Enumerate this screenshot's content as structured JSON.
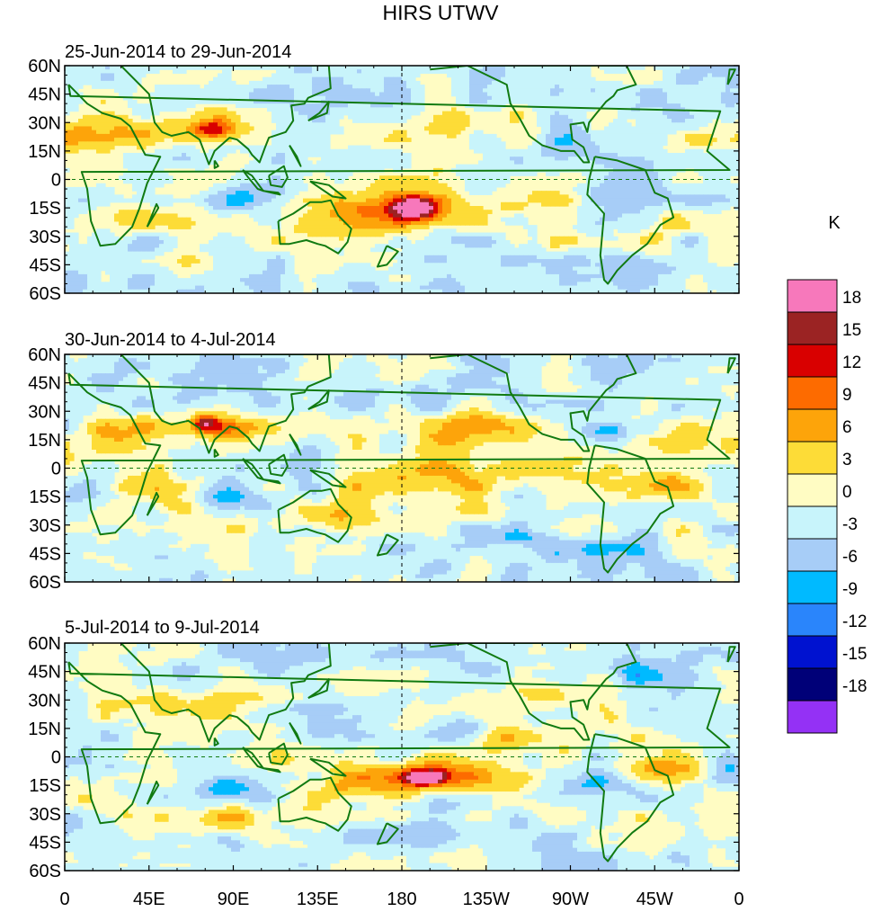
{
  "chart_data": {
    "type": "heatmap",
    "title": "HIRS UTWV",
    "colorbar": {
      "unit_label": "K",
      "levels": [
        "18",
        "15",
        "12",
        "9",
        "6",
        "3",
        "0",
        "-3",
        "-6",
        "-9",
        "-12",
        "-15",
        "-18"
      ],
      "colors": [
        "#f778bb",
        "#9b2323",
        "#d90000",
        "#fd6b00",
        "#fda40a",
        "#fddc37",
        "#fffcc3",
        "#c8f4fb",
        "#a7cdf7",
        "#00baff",
        "#2a85fb",
        "#0012d0",
        "#000078",
        "#9431f5"
      ]
    },
    "x_ticks": [
      "0",
      "45E",
      "90E",
      "135E",
      "180",
      "135W",
      "90W",
      "45W",
      "0"
    ],
    "y_ticks": [
      "60N",
      "45N",
      "30N",
      "15N",
      "0",
      "15S",
      "30S",
      "45S",
      "60S"
    ],
    "lon_range": [
      0,
      360
    ],
    "lat_range": [
      -60,
      60
    ],
    "panels": [
      {
        "subtitle": "25-Jun-2014 to 29-Jun-2014",
        "blobs": [
          {
            "lon": 185,
            "lat": -16,
            "rx": 28,
            "ry": 10,
            "v": 12
          },
          {
            "lon": 187,
            "lat": -15,
            "rx": 10,
            "ry": 5,
            "v": 16
          },
          {
            "lon": 150,
            "lat": -22,
            "rx": 45,
            "ry": 8,
            "v": 6
          },
          {
            "lon": 65,
            "lat": 28,
            "rx": 40,
            "ry": 10,
            "v": 7
          },
          {
            "lon": 80,
            "lat": 26,
            "rx": 10,
            "ry": 5,
            "v": 10
          },
          {
            "lon": 20,
            "lat": 22,
            "rx": 25,
            "ry": 8,
            "v": 5
          },
          {
            "lon": 35,
            "lat": -10,
            "rx": 20,
            "ry": 8,
            "v": 4
          },
          {
            "lon": 215,
            "lat": 30,
            "rx": 20,
            "ry": 8,
            "v": 5
          },
          {
            "lon": 320,
            "lat": -30,
            "rx": 15,
            "ry": 10,
            "v": 6
          },
          {
            "lon": 345,
            "lat": 20,
            "rx": 15,
            "ry": 8,
            "v": 4
          },
          {
            "lon": 270,
            "lat": 20,
            "rx": 20,
            "ry": 8,
            "v": -5
          },
          {
            "lon": 300,
            "lat": 0,
            "rx": 25,
            "ry": 10,
            "v": -4
          },
          {
            "lon": 100,
            "lat": -10,
            "rx": 25,
            "ry": 8,
            "v": -6
          },
          {
            "lon": 120,
            "lat": 22,
            "rx": 15,
            "ry": 6,
            "v": -4
          },
          {
            "lon": 330,
            "lat": -32,
            "rx": 15,
            "ry": 6,
            "v": -6
          },
          {
            "lon": 160,
            "lat": 40,
            "rx": 40,
            "ry": 8,
            "v": -3
          },
          {
            "lon": 300,
            "lat": -45,
            "rx": 25,
            "ry": 6,
            "v": -4
          }
        ]
      },
      {
        "subtitle": "30-Jun-2014 to 4-Jul-2014",
        "blobs": [
          {
            "lon": 200,
            "lat": -5,
            "rx": 35,
            "ry": 12,
            "v": 8
          },
          {
            "lon": 215,
            "lat": 20,
            "rx": 35,
            "ry": 10,
            "v": 6
          },
          {
            "lon": 320,
            "lat": -8,
            "rx": 25,
            "ry": 10,
            "v": 7
          },
          {
            "lon": 330,
            "lat": 12,
            "rx": 15,
            "ry": 6,
            "v": 7
          },
          {
            "lon": 78,
            "lat": 22,
            "rx": 25,
            "ry": 8,
            "v": 9
          },
          {
            "lon": 75,
            "lat": 24,
            "rx": 6,
            "ry": 4,
            "v": 13
          },
          {
            "lon": 150,
            "lat": -28,
            "rx": 45,
            "ry": 8,
            "v": 5
          },
          {
            "lon": 30,
            "lat": 20,
            "rx": 25,
            "ry": 8,
            "v": 4
          },
          {
            "lon": 45,
            "lat": -10,
            "rx": 25,
            "ry": 10,
            "v": 4
          },
          {
            "lon": 88,
            "lat": -15,
            "rx": 18,
            "ry": 7,
            "v": -6
          },
          {
            "lon": 15,
            "lat": -12,
            "rx": 12,
            "ry": 6,
            "v": -5
          },
          {
            "lon": 130,
            "lat": 5,
            "rx": 30,
            "ry": 10,
            "v": -4
          },
          {
            "lon": 250,
            "lat": -40,
            "rx": 50,
            "ry": 8,
            "v": -4
          },
          {
            "lon": 290,
            "lat": 18,
            "rx": 15,
            "ry": 6,
            "v": -6
          },
          {
            "lon": 350,
            "lat": -2,
            "rx": 10,
            "ry": 6,
            "v": -6
          },
          {
            "lon": 175,
            "lat": 40,
            "rx": 40,
            "ry": 8,
            "v": -3
          }
        ]
      },
      {
        "subtitle": "5-Jul-2014 to 9-Jul-2014",
        "blobs": [
          {
            "lon": 195,
            "lat": -10,
            "rx": 30,
            "ry": 8,
            "v": 10
          },
          {
            "lon": 192,
            "lat": -11,
            "rx": 12,
            "ry": 4,
            "v": 14
          },
          {
            "lon": 160,
            "lat": -15,
            "rx": 30,
            "ry": 8,
            "v": 5
          },
          {
            "lon": 90,
            "lat": -32,
            "rx": 50,
            "ry": 8,
            "v": 5
          },
          {
            "lon": 320,
            "lat": -5,
            "rx": 20,
            "ry": 8,
            "v": 8
          },
          {
            "lon": 50,
            "lat": 28,
            "rx": 40,
            "ry": 8,
            "v": 5
          },
          {
            "lon": 225,
            "lat": 25,
            "rx": 20,
            "ry": 8,
            "v": 4
          },
          {
            "lon": 250,
            "lat": 35,
            "rx": 15,
            "ry": 8,
            "v": 4
          },
          {
            "lon": 235,
            "lat": 10,
            "rx": 12,
            "ry": 6,
            "v": 5
          },
          {
            "lon": 25,
            "lat": -25,
            "rx": 20,
            "ry": 8,
            "v": 4
          },
          {
            "lon": 88,
            "lat": -15,
            "rx": 18,
            "ry": 8,
            "v": -8
          },
          {
            "lon": 140,
            "lat": 20,
            "rx": 25,
            "ry": 12,
            "v": -5
          },
          {
            "lon": 210,
            "lat": 15,
            "rx": 15,
            "ry": 7,
            "v": -6
          },
          {
            "lon": 280,
            "lat": -15,
            "rx": 25,
            "ry": 8,
            "v": -5
          },
          {
            "lon": 355,
            "lat": -10,
            "rx": 10,
            "ry": 8,
            "v": -6
          },
          {
            "lon": 300,
            "lat": 45,
            "rx": 25,
            "ry": 8,
            "v": -4
          },
          {
            "lon": 170,
            "lat": -40,
            "rx": 40,
            "ry": 6,
            "v": -3
          }
        ]
      }
    ]
  }
}
